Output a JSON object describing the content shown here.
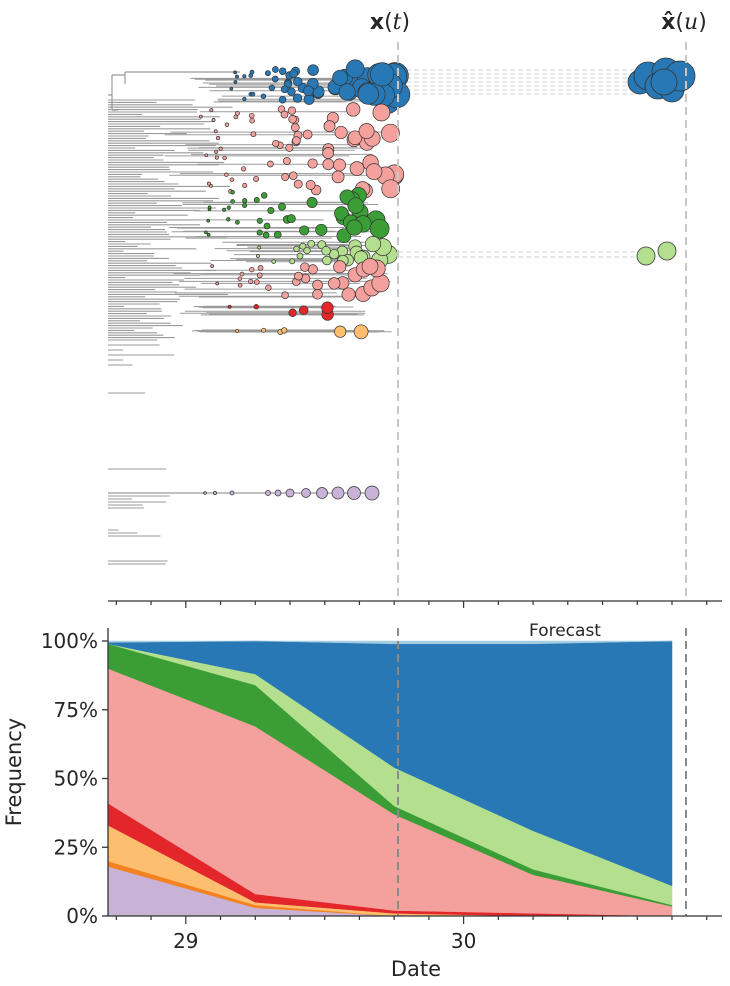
{
  "figure": {
    "top_panel": {
      "current_label": {
        "bold": "x",
        "open": "(",
        "var": "t",
        "close": ")"
      },
      "forecast_label": {
        "bold": "x̂",
        "open": "(",
        "var": "u",
        "close": ")"
      },
      "clade_colors": {
        "blue": "#2878b5",
        "light_blue": "#a6cee3",
        "salmon": "#f4a09c",
        "green": "#3a9d35",
        "light_green": "#b3df8e",
        "red": "#e3262a",
        "orange": "#fdbf6f",
        "dark_orange": "#f58220",
        "purple": "#c8b2d6"
      }
    }
  },
  "chart_data": {
    "type": "area",
    "stacked": true,
    "ylabel": "Frequency",
    "xlabel": "Date",
    "xlim": [
      28.72,
      30.93
    ],
    "ylim": [
      0,
      1
    ],
    "x_ticks": [
      29,
      30
    ],
    "y_ticks": [
      "0%",
      "25%",
      "50%",
      "75%",
      "100%"
    ],
    "present_time": 29.75,
    "forecast_time": 30.75,
    "annotation": "Forecast",
    "x": [
      28.72,
      29.25,
      29.75,
      30.25,
      30.75
    ],
    "series": [
      {
        "color": "#c8b2d6",
        "values": [
          0.18,
          0.03,
          0.0,
          0.0,
          0.0
        ]
      },
      {
        "color": "#f58220",
        "values": [
          0.02,
          0.01,
          0.0,
          0.0,
          0.0
        ]
      },
      {
        "color": "#fdbf6f",
        "values": [
          0.13,
          0.01,
          0.01,
          0.0,
          0.0
        ]
      },
      {
        "color": "#e3262a",
        "values": [
          0.08,
          0.03,
          0.01,
          0.01,
          0.0
        ]
      },
      {
        "color": "#f4a09c",
        "values": [
          0.49,
          0.61,
          0.35,
          0.14,
          0.035
        ]
      },
      {
        "color": "#3a9d35",
        "values": [
          0.09,
          0.15,
          0.03,
          0.02,
          0.005
        ]
      },
      {
        "color": "#b3df8e",
        "values": [
          0.0,
          0.04,
          0.14,
          0.14,
          0.07
        ]
      },
      {
        "color": "#2878b5",
        "values": [
          0.005,
          0.12,
          0.45,
          0.68,
          0.89
        ]
      },
      {
        "color": "#a6cee3",
        "values": [
          0.005,
          0.0,
          0.01,
          0.01,
          0.0
        ]
      }
    ]
  }
}
